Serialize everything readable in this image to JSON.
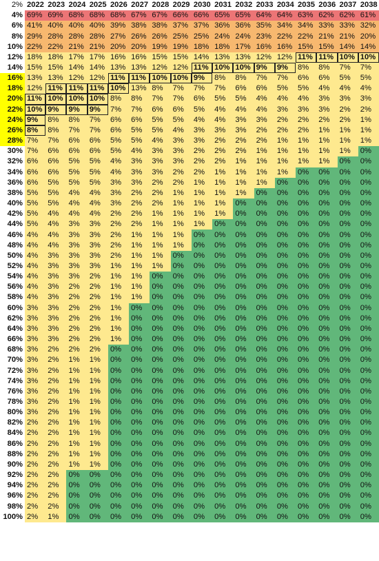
{
  "corner_label": "2%",
  "years": [
    "2022",
    "2023",
    "2024",
    "2025",
    "2026",
    "2027",
    "2028",
    "2029",
    "2030",
    "2031",
    "2032",
    "2033",
    "2034",
    "2035",
    "2036",
    "2037",
    "2038"
  ],
  "colors": {
    "red": "#ec7576",
    "orange": "#f7b86f",
    "yellow": "#fee98f",
    "green": "#61b77a",
    "row_highlight": "#ffff00"
  },
  "rows": [
    {
      "label": "4%",
      "highlight": false,
      "values": [
        "69%",
        "69%",
        "68%",
        "68%",
        "68%",
        "67%",
        "67%",
        "66%",
        "66%",
        "65%",
        "65%",
        "64%",
        "64%",
        "63%",
        "62%",
        "62%",
        "61%"
      ],
      "boxed": []
    },
    {
      "label": "6%",
      "highlight": false,
      "values": [
        "41%",
        "40%",
        "40%",
        "40%",
        "39%",
        "38%",
        "38%",
        "37%",
        "37%",
        "36%",
        "36%",
        "35%",
        "34%",
        "34%",
        "33%",
        "33%",
        "32%"
      ],
      "boxed": []
    },
    {
      "label": "8%",
      "highlight": false,
      "values": [
        "29%",
        "28%",
        "28%",
        "28%",
        "27%",
        "26%",
        "26%",
        "25%",
        "25%",
        "24%",
        "24%",
        "23%",
        "22%",
        "22%",
        "21%",
        "21%",
        "20%"
      ],
      "boxed": []
    },
    {
      "label": "10%",
      "highlight": false,
      "values": [
        "22%",
        "22%",
        "21%",
        "21%",
        "20%",
        "20%",
        "19%",
        "19%",
        "18%",
        "18%",
        "17%",
        "16%",
        "16%",
        "15%",
        "15%",
        "14%",
        "14%"
      ],
      "boxed": []
    },
    {
      "label": "12%",
      "highlight": false,
      "values": [
        "18%",
        "18%",
        "17%",
        "17%",
        "16%",
        "16%",
        "15%",
        "15%",
        "14%",
        "13%",
        "13%",
        "12%",
        "12%",
        "11%",
        "11%",
        "10%",
        "10%"
      ],
      "boxed": [
        13,
        14,
        15,
        16
      ]
    },
    {
      "label": "14%",
      "highlight": false,
      "values": [
        "15%",
        "15%",
        "14%",
        "14%",
        "13%",
        "13%",
        "12%",
        "12%",
        "11%",
        "10%",
        "10%",
        "9%",
        "9%",
        "8%",
        "8%",
        "7%",
        "7%"
      ],
      "boxed": [
        8,
        9,
        10,
        11,
        12
      ]
    },
    {
      "label": "16%",
      "highlight": true,
      "values": [
        "13%",
        "13%",
        "12%",
        "12%",
        "11%",
        "11%",
        "10%",
        "10%",
        "9%",
        "8%",
        "8%",
        "7%",
        "7%",
        "6%",
        "6%",
        "5%",
        "5%"
      ],
      "boxed": [
        4,
        5,
        6,
        7,
        8
      ]
    },
    {
      "label": "18%",
      "highlight": true,
      "values": [
        "12%",
        "11%",
        "11%",
        "11%",
        "10%",
        "13%",
        "8%",
        "7%",
        "7%",
        "7%",
        "6%",
        "6%",
        "5%",
        "5%",
        "4%",
        "4%",
        "4%"
      ],
      "boxed": [
        1,
        2,
        3,
        4
      ]
    },
    {
      "label": "20%",
      "highlight": true,
      "values": [
        "11%",
        "10%",
        "10%",
        "10%",
        "8%",
        "8%",
        "7%",
        "7%",
        "6%",
        "5%",
        "5%",
        "4%",
        "4%",
        "4%",
        "3%",
        "3%",
        "3%"
      ],
      "boxed": [
        0,
        1,
        2,
        3
      ]
    },
    {
      "label": "22%",
      "highlight": true,
      "values": [
        "10%",
        "9%",
        "9%",
        "9%",
        "7%",
        "7%",
        "6%",
        "6%",
        "5%",
        "4%",
        "4%",
        "4%",
        "3%",
        "3%",
        "3%",
        "2%",
        "2%"
      ],
      "boxed": [
        0,
        1,
        2,
        3
      ]
    },
    {
      "label": "24%",
      "highlight": true,
      "values": [
        "9%",
        "8%",
        "8%",
        "7%",
        "6%",
        "6%",
        "5%",
        "5%",
        "4%",
        "4%",
        "3%",
        "3%",
        "2%",
        "2%",
        "2%",
        "2%",
        "1%"
      ],
      "boxed": [
        0
      ]
    },
    {
      "label": "26%",
      "highlight": true,
      "values": [
        "8%",
        "8%",
        "7%",
        "7%",
        "6%",
        "5%",
        "5%",
        "4%",
        "3%",
        "3%",
        "3%",
        "2%",
        "2%",
        "2%",
        "1%",
        "1%",
        "1%"
      ],
      "boxed": [
        0
      ]
    },
    {
      "label": "28%",
      "highlight": true,
      "values": [
        "7%",
        "7%",
        "6%",
        "6%",
        "5%",
        "5%",
        "4%",
        "3%",
        "3%",
        "2%",
        "2%",
        "2%",
        "1%",
        "1%",
        "1%",
        "1%",
        "1%"
      ],
      "boxed": []
    },
    {
      "label": "30%",
      "highlight": false,
      "values": [
        "7%",
        "6%",
        "6%",
        "6%",
        "5%",
        "4%",
        "3%",
        "3%",
        "2%",
        "2%",
        "2%",
        "1%",
        "1%",
        "1%",
        "1%",
        "1%",
        "0%"
      ],
      "boxed": []
    },
    {
      "label": "32%",
      "highlight": false,
      "values": [
        "6%",
        "6%",
        "5%",
        "5%",
        "4%",
        "3%",
        "3%",
        "3%",
        "2%",
        "2%",
        "1%",
        "1%",
        "1%",
        "1%",
        "1%",
        "0%",
        "0%"
      ],
      "boxed": []
    },
    {
      "label": "34%",
      "highlight": false,
      "values": [
        "6%",
        "6%",
        "5%",
        "5%",
        "4%",
        "3%",
        "3%",
        "2%",
        "2%",
        "1%",
        "1%",
        "1%",
        "1%",
        "0%",
        "0%",
        "0%",
        "0%"
      ],
      "boxed": []
    },
    {
      "label": "36%",
      "highlight": false,
      "values": [
        "6%",
        "5%",
        "5%",
        "5%",
        "3%",
        "3%",
        "2%",
        "2%",
        "1%",
        "1%",
        "1%",
        "1%",
        "0%",
        "0%",
        "0%",
        "0%",
        "0%"
      ],
      "boxed": []
    },
    {
      "label": "38%",
      "highlight": false,
      "values": [
        "5%",
        "5%",
        "4%",
        "4%",
        "3%",
        "2%",
        "2%",
        "1%",
        "1%",
        "1%",
        "1%",
        "0%",
        "0%",
        "0%",
        "0%",
        "0%",
        "0%"
      ],
      "boxed": []
    },
    {
      "label": "40%",
      "highlight": false,
      "values": [
        "5%",
        "5%",
        "4%",
        "4%",
        "3%",
        "2%",
        "2%",
        "1%",
        "1%",
        "1%",
        "0%",
        "0%",
        "0%",
        "0%",
        "0%",
        "0%",
        "0%"
      ],
      "boxed": []
    },
    {
      "label": "42%",
      "highlight": false,
      "values": [
        "5%",
        "4%",
        "4%",
        "4%",
        "2%",
        "2%",
        "1%",
        "1%",
        "1%",
        "1%",
        "0%",
        "0%",
        "0%",
        "0%",
        "0%",
        "0%",
        "0%"
      ],
      "boxed": []
    },
    {
      "label": "44%",
      "highlight": false,
      "values": [
        "5%",
        "4%",
        "3%",
        "3%",
        "2%",
        "2%",
        "1%",
        "1%",
        "1%",
        "0%",
        "0%",
        "0%",
        "0%",
        "0%",
        "0%",
        "0%",
        "0%"
      ],
      "boxed": []
    },
    {
      "label": "46%",
      "highlight": false,
      "values": [
        "4%",
        "4%",
        "3%",
        "3%",
        "2%",
        "1%",
        "1%",
        "1%",
        "0%",
        "0%",
        "0%",
        "0%",
        "0%",
        "0%",
        "0%",
        "0%",
        "0%"
      ],
      "boxed": []
    },
    {
      "label": "48%",
      "highlight": false,
      "values": [
        "4%",
        "4%",
        "3%",
        "3%",
        "2%",
        "1%",
        "1%",
        "1%",
        "0%",
        "0%",
        "0%",
        "0%",
        "0%",
        "0%",
        "0%",
        "0%",
        "0%"
      ],
      "boxed": []
    },
    {
      "label": "50%",
      "highlight": false,
      "values": [
        "4%",
        "3%",
        "3%",
        "3%",
        "2%",
        "1%",
        "1%",
        "0%",
        "0%",
        "0%",
        "0%",
        "0%",
        "0%",
        "0%",
        "0%",
        "0%",
        "0%"
      ],
      "boxed": []
    },
    {
      "label": "52%",
      "highlight": false,
      "values": [
        "4%",
        "3%",
        "3%",
        "3%",
        "1%",
        "1%",
        "1%",
        "0%",
        "0%",
        "0%",
        "0%",
        "0%",
        "0%",
        "0%",
        "0%",
        "0%",
        "0%"
      ],
      "boxed": []
    },
    {
      "label": "54%",
      "highlight": false,
      "values": [
        "4%",
        "3%",
        "3%",
        "2%",
        "1%",
        "1%",
        "0%",
        "0%",
        "0%",
        "0%",
        "0%",
        "0%",
        "0%",
        "0%",
        "0%",
        "0%",
        "0%"
      ],
      "boxed": []
    },
    {
      "label": "56%",
      "highlight": false,
      "values": [
        "4%",
        "3%",
        "2%",
        "2%",
        "1%",
        "1%",
        "0%",
        "0%",
        "0%",
        "0%",
        "0%",
        "0%",
        "0%",
        "0%",
        "0%",
        "0%",
        "0%"
      ],
      "boxed": []
    },
    {
      "label": "58%",
      "highlight": false,
      "values": [
        "4%",
        "3%",
        "2%",
        "2%",
        "1%",
        "1%",
        "0%",
        "0%",
        "0%",
        "0%",
        "0%",
        "0%",
        "0%",
        "0%",
        "0%",
        "0%",
        "0%"
      ],
      "boxed": []
    },
    {
      "label": "60%",
      "highlight": false,
      "values": [
        "3%",
        "3%",
        "2%",
        "2%",
        "1%",
        "0%",
        "0%",
        "0%",
        "0%",
        "0%",
        "0%",
        "0%",
        "0%",
        "0%",
        "0%",
        "0%",
        "0%"
      ],
      "boxed": []
    },
    {
      "label": "62%",
      "highlight": false,
      "values": [
        "3%",
        "3%",
        "2%",
        "2%",
        "1%",
        "0%",
        "0%",
        "0%",
        "0%",
        "0%",
        "0%",
        "0%",
        "0%",
        "0%",
        "0%",
        "0%",
        "0%"
      ],
      "boxed": []
    },
    {
      "label": "64%",
      "highlight": false,
      "values": [
        "3%",
        "3%",
        "2%",
        "2%",
        "1%",
        "0%",
        "0%",
        "0%",
        "0%",
        "0%",
        "0%",
        "0%",
        "0%",
        "0%",
        "0%",
        "0%",
        "0%"
      ],
      "boxed": []
    },
    {
      "label": "66%",
      "highlight": false,
      "values": [
        "3%",
        "3%",
        "2%",
        "2%",
        "1%",
        "0%",
        "0%",
        "0%",
        "0%",
        "0%",
        "0%",
        "0%",
        "0%",
        "0%",
        "0%",
        "0%",
        "0%"
      ],
      "boxed": []
    },
    {
      "label": "68%",
      "highlight": false,
      "values": [
        "3%",
        "2%",
        "2%",
        "2%",
        "0%",
        "0%",
        "0%",
        "0%",
        "0%",
        "0%",
        "0%",
        "0%",
        "0%",
        "0%",
        "0%",
        "0%",
        "0%"
      ],
      "boxed": []
    },
    {
      "label": "70%",
      "highlight": false,
      "values": [
        "3%",
        "2%",
        "1%",
        "1%",
        "0%",
        "0%",
        "0%",
        "0%",
        "0%",
        "0%",
        "0%",
        "0%",
        "0%",
        "0%",
        "0%",
        "0%",
        "0%"
      ],
      "boxed": []
    },
    {
      "label": "72%",
      "highlight": false,
      "values": [
        "3%",
        "2%",
        "1%",
        "1%",
        "0%",
        "0%",
        "0%",
        "0%",
        "0%",
        "0%",
        "0%",
        "0%",
        "0%",
        "0%",
        "0%",
        "0%",
        "0%"
      ],
      "boxed": []
    },
    {
      "label": "74%",
      "highlight": false,
      "values": [
        "3%",
        "2%",
        "1%",
        "1%",
        "0%",
        "0%",
        "0%",
        "0%",
        "0%",
        "0%",
        "0%",
        "0%",
        "0%",
        "0%",
        "0%",
        "0%",
        "0%"
      ],
      "boxed": []
    },
    {
      "label": "76%",
      "highlight": false,
      "values": [
        "3%",
        "2%",
        "1%",
        "1%",
        "0%",
        "0%",
        "0%",
        "0%",
        "0%",
        "0%",
        "0%",
        "0%",
        "0%",
        "0%",
        "0%",
        "0%",
        "0%"
      ],
      "boxed": []
    },
    {
      "label": "78%",
      "highlight": false,
      "values": [
        "3%",
        "2%",
        "1%",
        "1%",
        "0%",
        "0%",
        "0%",
        "0%",
        "0%",
        "0%",
        "0%",
        "0%",
        "0%",
        "0%",
        "0%",
        "0%",
        "0%"
      ],
      "boxed": []
    },
    {
      "label": "80%",
      "highlight": false,
      "values": [
        "3%",
        "2%",
        "1%",
        "1%",
        "0%",
        "0%",
        "0%",
        "0%",
        "0%",
        "0%",
        "0%",
        "0%",
        "0%",
        "0%",
        "0%",
        "0%",
        "0%"
      ],
      "boxed": []
    },
    {
      "label": "82%",
      "highlight": false,
      "values": [
        "2%",
        "2%",
        "1%",
        "1%",
        "0%",
        "0%",
        "0%",
        "0%",
        "0%",
        "0%",
        "0%",
        "0%",
        "0%",
        "0%",
        "0%",
        "0%",
        "0%"
      ],
      "boxed": []
    },
    {
      "label": "84%",
      "highlight": false,
      "values": [
        "2%",
        "2%",
        "1%",
        "1%",
        "0%",
        "0%",
        "0%",
        "0%",
        "0%",
        "0%",
        "0%",
        "0%",
        "0%",
        "0%",
        "0%",
        "0%",
        "0%"
      ],
      "boxed": []
    },
    {
      "label": "86%",
      "highlight": false,
      "values": [
        "2%",
        "2%",
        "1%",
        "1%",
        "0%",
        "0%",
        "0%",
        "0%",
        "0%",
        "0%",
        "0%",
        "0%",
        "0%",
        "0%",
        "0%",
        "0%",
        "0%"
      ],
      "boxed": []
    },
    {
      "label": "88%",
      "highlight": false,
      "values": [
        "2%",
        "2%",
        "1%",
        "1%",
        "0%",
        "0%",
        "0%",
        "0%",
        "0%",
        "0%",
        "0%",
        "0%",
        "0%",
        "0%",
        "0%",
        "0%",
        "0%"
      ],
      "boxed": []
    },
    {
      "label": "90%",
      "highlight": false,
      "values": [
        "2%",
        "2%",
        "1%",
        "1%",
        "0%",
        "0%",
        "0%",
        "0%",
        "0%",
        "0%",
        "0%",
        "0%",
        "0%",
        "0%",
        "0%",
        "0%",
        "0%"
      ],
      "boxed": []
    },
    {
      "label": "92%",
      "highlight": false,
      "values": [
        "2%",
        "2%",
        "0%",
        "0%",
        "0%",
        "0%",
        "0%",
        "0%",
        "0%",
        "0%",
        "0%",
        "0%",
        "0%",
        "0%",
        "0%",
        "0%",
        "0%"
      ],
      "boxed": []
    },
    {
      "label": "94%",
      "highlight": false,
      "values": [
        "2%",
        "2%",
        "0%",
        "0%",
        "0%",
        "0%",
        "0%",
        "0%",
        "0%",
        "0%",
        "0%",
        "0%",
        "0%",
        "0%",
        "0%",
        "0%",
        "0%"
      ],
      "boxed": []
    },
    {
      "label": "96%",
      "highlight": false,
      "values": [
        "2%",
        "2%",
        "0%",
        "0%",
        "0%",
        "0%",
        "0%",
        "0%",
        "0%",
        "0%",
        "0%",
        "0%",
        "0%",
        "0%",
        "0%",
        "0%",
        "0%"
      ],
      "boxed": []
    },
    {
      "label": "98%",
      "highlight": false,
      "values": [
        "2%",
        "2%",
        "0%",
        "0%",
        "0%",
        "0%",
        "0%",
        "0%",
        "0%",
        "0%",
        "0%",
        "0%",
        "0%",
        "0%",
        "0%",
        "0%",
        "0%"
      ],
      "boxed": []
    },
    {
      "label": "100%",
      "highlight": false,
      "values": [
        "2%",
        "1%",
        "0%",
        "0%",
        "0%",
        "0%",
        "0%",
        "0%",
        "0%",
        "0%",
        "0%",
        "0%",
        "0%",
        "0%",
        "0%",
        "0%",
        "0%"
      ],
      "boxed": []
    }
  ]
}
